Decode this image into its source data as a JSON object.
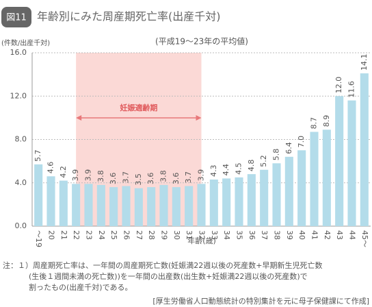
{
  "chart_data": {
    "type": "bar",
    "badge": "図11",
    "title": "年齢別にみた周産期死亡率(出産千対)",
    "subtitle": "(平成19～23年の平均値)",
    "y_label": "(件数/出産千対)",
    "x_label": "年齢(歳)",
    "categories": [
      "～19",
      "20",
      "21",
      "22",
      "23",
      "24",
      "25",
      "26",
      "27",
      "28",
      "29",
      "30",
      "31",
      "32",
      "33",
      "34",
      "35",
      "36",
      "37",
      "38",
      "39",
      "40",
      "41",
      "42",
      "43",
      "44",
      "45～"
    ],
    "values": [
      5.7,
      4.6,
      4.2,
      3.9,
      3.9,
      3.8,
      3.6,
      3.7,
      3.5,
      3.6,
      3.8,
      3.6,
      3.7,
      3.9,
      4.3,
      4.4,
      4.5,
      4.8,
      5.2,
      5.8,
      6.4,
      7.0,
      8.7,
      8.9,
      12.0,
      11.6,
      14.1
    ],
    "value_labels": [
      "5.7",
      "4.6",
      "4.2",
      "3.9",
      "3.9",
      "3.8",
      "3.6",
      "3.7",
      "3.5",
      "3.6",
      "3.8",
      "3.6",
      "3.7",
      "3.9",
      "4.3",
      "4.4",
      "4.5",
      "4.8",
      "5.2",
      "5.8",
      "6.4",
      "7.0",
      "8.7",
      "8.9",
      "12.0",
      "11.6",
      "14.1"
    ],
    "color": "#b3dcea",
    "ylim": [
      0,
      16
    ],
    "yticks": [
      {
        "value": 0,
        "label": "0.0"
      },
      {
        "value": 4,
        "label": "4.0"
      },
      {
        "value": 8,
        "label": "8.0"
      },
      {
        "value": 12,
        "label": "12.0"
      },
      {
        "value": 16,
        "label": "16.0"
      }
    ],
    "grid": true,
    "highlight": {
      "label": "妊娠適齢期",
      "from": "22",
      "to": "32",
      "color": "#fbd9d6"
    },
    "notes": [
      "注：１）周産期死亡率は、一年間の周産期死亡数(妊娠満22週以後の死産数+早期新生児死亡数",
      "(生後１週間未満の死亡数))を一年間の出産数(出生数+妊娠満22週以後の死産数)で",
      "割ったもの(出産千対)である。"
    ],
    "source": "[厚生労働省人口動態統計の特別集計を元に母子保健課にて作成]"
  }
}
